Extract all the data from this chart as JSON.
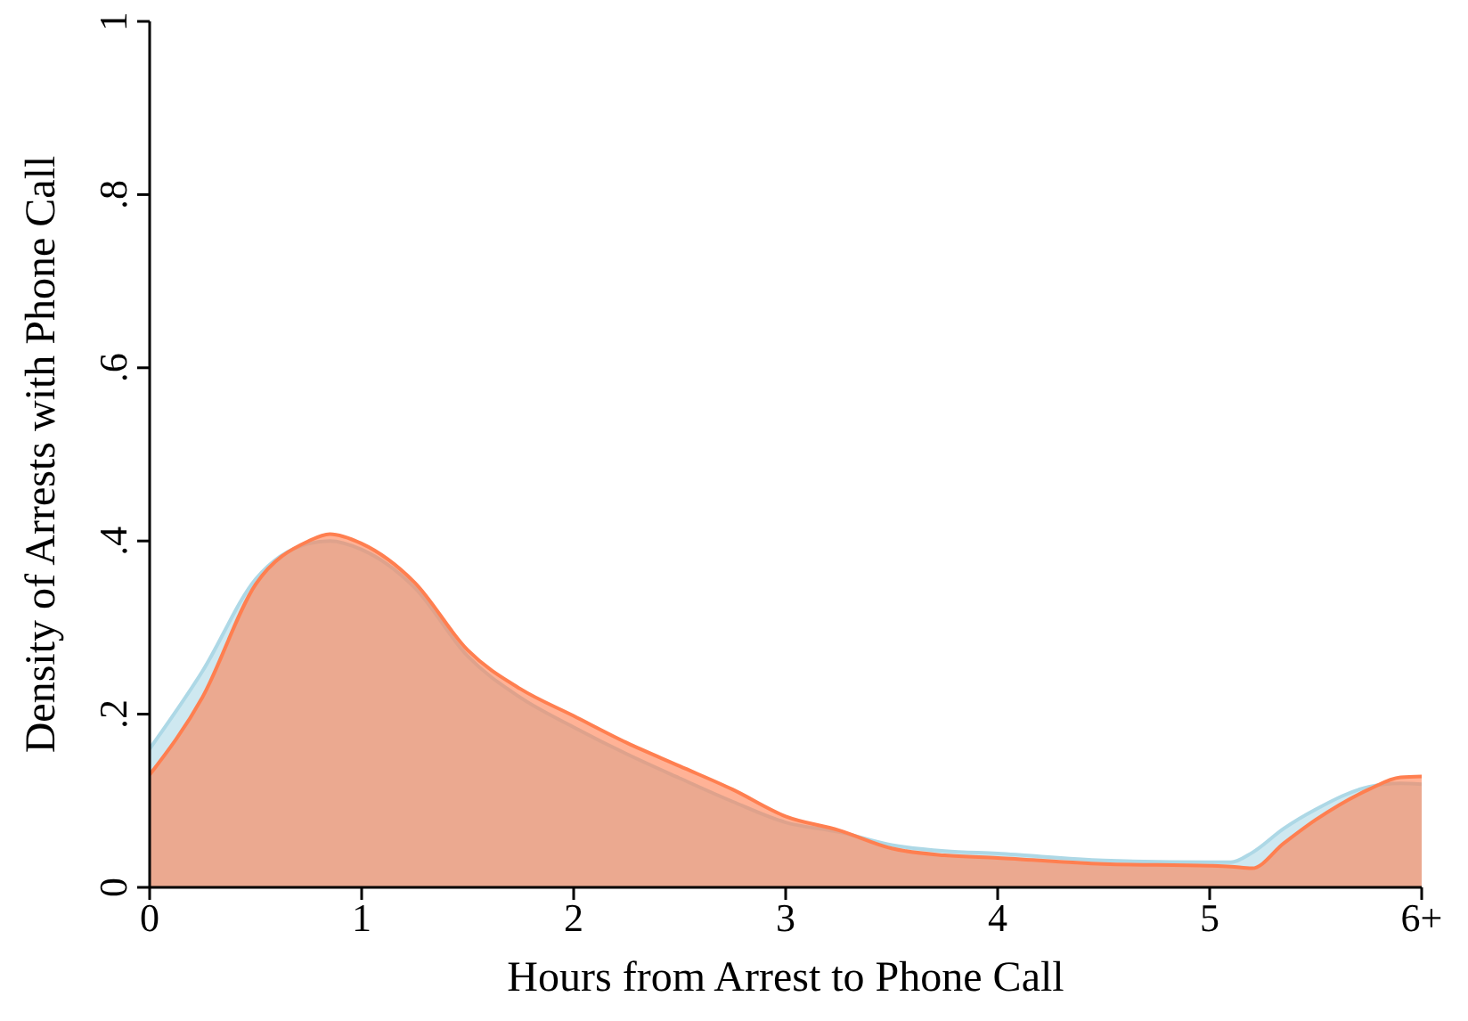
{
  "chart_data": {
    "type": "area",
    "xlabel": "Hours from Arrest to Phone Call",
    "ylabel": "Density of Arrests with Phone Call",
    "xlim": [
      0,
      6
    ],
    "xticks": [
      0,
      1,
      2,
      3,
      4,
      5,
      {
        "value": 6,
        "label": "6+"
      }
    ],
    "ylim": [
      0,
      1
    ],
    "yticks": [
      0,
      {
        "value": 0.2,
        "label": ".2"
      },
      {
        "value": 0.4,
        "label": ".4"
      },
      {
        "value": 0.6,
        "label": ".6"
      },
      {
        "value": 0.8,
        "label": ".8"
      },
      1
    ],
    "series": [
      {
        "color": "#add8e6",
        "x": [
          0,
          0.25,
          0.5,
          0.75,
          0.85,
          1,
          1.25,
          1.5,
          1.75,
          2,
          2.25,
          2.5,
          2.75,
          3,
          3.25,
          3.5,
          3.75,
          4,
          4.5,
          5,
          5.1,
          5.2,
          5.35,
          5.5,
          5.75,
          5.9,
          6
        ],
        "values": [
          0.16,
          0.25,
          0.356,
          0.397,
          0.4,
          0.39,
          0.346,
          0.267,
          0.219,
          0.185,
          0.154,
          0.126,
          0.099,
          0.075,
          0.064,
          0.049,
          0.042,
          0.039,
          0.031,
          0.029,
          0.029,
          0.04,
          0.068,
          0.09,
          0.116,
          0.12,
          0.119
        ]
      },
      {
        "color": "#ff7f50",
        "x": [
          0,
          0.25,
          0.5,
          0.75,
          0.85,
          1,
          1.25,
          1.5,
          1.75,
          2,
          2.25,
          2.5,
          2.75,
          3,
          3.25,
          3.5,
          3.75,
          4,
          4.5,
          5,
          5.1,
          5.2,
          5.35,
          5.5,
          5.75,
          5.9,
          6
        ],
        "values": [
          0.13,
          0.22,
          0.35,
          0.4,
          0.408,
          0.397,
          0.352,
          0.274,
          0.229,
          0.198,
          0.167,
          0.14,
          0.113,
          0.082,
          0.066,
          0.045,
          0.037,
          0.034,
          0.027,
          0.025,
          0.024,
          0.022,
          0.051,
          0.078,
          0.113,
          0.127,
          0.128
        ]
      }
    ]
  }
}
